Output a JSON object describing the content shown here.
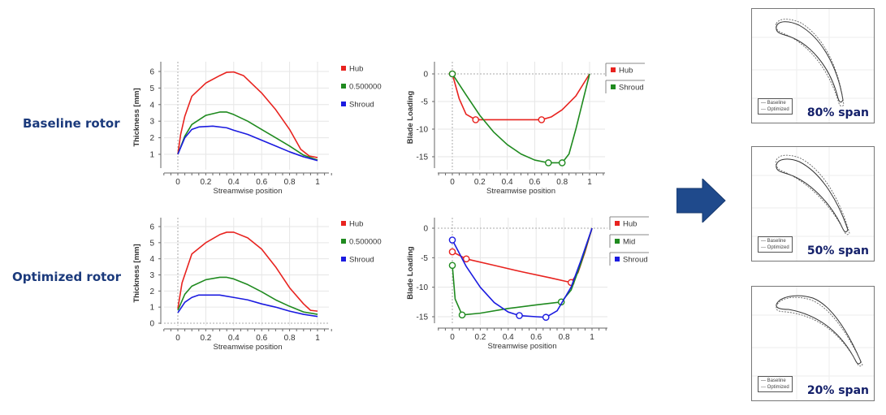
{
  "row_labels": {
    "baseline": "Baseline rotor",
    "optimized": "Optimized rotor"
  },
  "colors": {
    "hub": "#e8231f",
    "mid": "#1f8a1f",
    "shroud": "#1b1be0",
    "label": "#1b3a7c",
    "arrow": "#1f4a8c"
  },
  "blade_panels": [
    {
      "span_label": "80% span",
      "legend": [
        "Baseline",
        "Optimized"
      ]
    },
    {
      "span_label": "50% span",
      "legend": [
        "Baseline",
        "Optimized"
      ]
    },
    {
      "span_label": "20% span",
      "legend": [
        "Baseline",
        "Optimized"
      ]
    }
  ],
  "chart_data": [
    {
      "type": "line",
      "id": "baseline-thickness",
      "xlabel": "Streamwise position",
      "ylabel": "Thickness [mm]",
      "xlim": [
        -0.1,
        1.1
      ],
      "ylim": [
        -0.3,
        6.5
      ],
      "xticks": [
        0,
        0.2,
        0.4,
        0.6,
        0.8,
        1
      ],
      "yticks": [
        1,
        2,
        3,
        4,
        5,
        6
      ],
      "grid": true,
      "legend": "right",
      "series": [
        {
          "name": "Hub",
          "color": "#e8231f",
          "x": [
            0,
            0.02,
            0.05,
            0.1,
            0.2,
            0.3,
            0.35,
            0.4,
            0.47,
            0.55,
            0.6,
            0.7,
            0.8,
            0.88,
            0.94,
            1
          ],
          "y": [
            1,
            2.2,
            3.3,
            4.5,
            5.3,
            5.75,
            5.95,
            5.97,
            5.75,
            5.1,
            4.7,
            3.7,
            2.5,
            1.3,
            0.9,
            0.8
          ]
        },
        {
          "name": "0.500000",
          "color": "#1f8a1f",
          "x": [
            0,
            0.05,
            0.1,
            0.2,
            0.3,
            0.35,
            0.4,
            0.5,
            0.6,
            0.7,
            0.8,
            0.9,
            1
          ],
          "y": [
            1,
            2.1,
            2.8,
            3.35,
            3.55,
            3.55,
            3.4,
            3.0,
            2.5,
            2.0,
            1.5,
            0.95,
            0.65
          ]
        },
        {
          "name": "Shroud",
          "color": "#1b1be0",
          "x": [
            0,
            0.05,
            0.1,
            0.15,
            0.25,
            0.35,
            0.4,
            0.5,
            0.6,
            0.7,
            0.8,
            0.9,
            1
          ],
          "y": [
            1,
            2.0,
            2.5,
            2.65,
            2.7,
            2.6,
            2.45,
            2.2,
            1.85,
            1.5,
            1.15,
            0.85,
            0.62
          ]
        }
      ]
    },
    {
      "type": "line",
      "id": "baseline-loading",
      "xlabel": "Streamwise position",
      "ylabel": "Blade Loading",
      "xlim": [
        -0.1,
        1.1
      ],
      "ylim": [
        -17.5,
        2
      ],
      "xticks": [
        0,
        0.2,
        0.4,
        0.6,
        0.8,
        1
      ],
      "yticks": [
        0,
        -5,
        -10,
        -15
      ],
      "grid": true,
      "legend": "right",
      "series": [
        {
          "name": "Hub",
          "color": "#e8231f",
          "x": [
            0,
            0.05,
            0.1,
            0.17,
            0.3,
            0.5,
            0.65,
            0.72,
            0.8,
            0.9,
            1
          ],
          "y": [
            0,
            -4.5,
            -7.3,
            -8.3,
            -8.3,
            -8.3,
            -8.3,
            -7.8,
            -6.5,
            -4,
            0
          ],
          "markers": [
            [
              0,
              0
            ],
            [
              0.17,
              -8.3
            ],
            [
              0.65,
              -8.3
            ]
          ]
        },
        {
          "name": "Shroud",
          "color": "#1f8a1f",
          "x": [
            0,
            0.1,
            0.2,
            0.3,
            0.4,
            0.5,
            0.6,
            0.7,
            0.8,
            0.85,
            0.9,
            0.95,
            1
          ],
          "y": [
            0,
            -3.8,
            -7.5,
            -10.5,
            -12.8,
            -14.5,
            -15.6,
            -16.1,
            -16.1,
            -14.5,
            -10,
            -5,
            0
          ],
          "markers": [
            [
              0,
              0
            ],
            [
              0.7,
              -16.1
            ],
            [
              0.8,
              -16.1
            ]
          ]
        }
      ]
    },
    {
      "type": "line",
      "id": "optimized-thickness",
      "xlabel": "Streamwise position",
      "ylabel": "Thickness [mm]",
      "xlim": [
        -0.1,
        1.1
      ],
      "ylim": [
        -0.3,
        6.5
      ],
      "xticks": [
        0,
        0.2,
        0.4,
        0.6,
        0.8,
        1
      ],
      "yticks": [
        0,
        1,
        2,
        3,
        4,
        5,
        6
      ],
      "grid": true,
      "legend": "right",
      "series": [
        {
          "name": "Hub",
          "color": "#e8231f",
          "x": [
            0,
            0.03,
            0.1,
            0.2,
            0.3,
            0.35,
            0.4,
            0.5,
            0.6,
            0.7,
            0.8,
            0.9,
            0.95,
            1
          ],
          "y": [
            0.9,
            2.5,
            4.3,
            5.0,
            5.5,
            5.65,
            5.65,
            5.3,
            4.6,
            3.5,
            2.2,
            1.2,
            0.8,
            0.75
          ]
        },
        {
          "name": "0.500000",
          "color": "#1f8a1f",
          "x": [
            0,
            0.05,
            0.1,
            0.2,
            0.3,
            0.35,
            0.4,
            0.5,
            0.6,
            0.7,
            0.8,
            0.9,
            1
          ],
          "y": [
            0.8,
            1.8,
            2.3,
            2.7,
            2.85,
            2.85,
            2.75,
            2.4,
            1.95,
            1.45,
            1.05,
            0.7,
            0.55
          ]
        },
        {
          "name": "Shroud",
          "color": "#1b1be0",
          "x": [
            0,
            0.05,
            0.1,
            0.15,
            0.3,
            0.4,
            0.5,
            0.6,
            0.7,
            0.8,
            0.9,
            1
          ],
          "y": [
            0.65,
            1.3,
            1.6,
            1.75,
            1.75,
            1.6,
            1.45,
            1.2,
            1.0,
            0.75,
            0.55,
            0.42
          ]
        }
      ]
    },
    {
      "type": "line",
      "id": "optimized-loading",
      "xlabel": "Streamwise position",
      "ylabel": "Blade Loading",
      "xlim": [
        -0.1,
        1.1
      ],
      "ylim": [
        -16.5,
        2
      ],
      "xticks": [
        0,
        0.2,
        0.4,
        0.6,
        0.8,
        1
      ],
      "yticks": [
        0,
        -5,
        -10,
        -15
      ],
      "grid": true,
      "legend": "right",
      "series": [
        {
          "name": "Hub",
          "color": "#e8231f",
          "x": [
            0,
            0.1,
            0.3,
            0.5,
            0.7,
            0.85,
            0.9,
            0.95,
            1
          ],
          "y": [
            -4,
            -5.2,
            -6.3,
            -7.4,
            -8.4,
            -9.2,
            -7.5,
            -4,
            0
          ],
          "markers": [
            [
              0,
              -4
            ],
            [
              0.1,
              -5.2
            ],
            [
              0.85,
              -9.2
            ]
          ]
        },
        {
          "name": "Mid",
          "color": "#1f8a1f",
          "x": [
            0,
            0.02,
            0.07,
            0.2,
            0.4,
            0.6,
            0.78,
            0.85,
            0.92,
            1
          ],
          "y": [
            -6.3,
            -12,
            -14.7,
            -14.4,
            -13.6,
            -13,
            -12.5,
            -10.5,
            -6,
            0
          ],
          "markers": [
            [
              0,
              -6.3
            ],
            [
              0.07,
              -14.7
            ],
            [
              0.78,
              -12.5
            ]
          ]
        },
        {
          "name": "Shroud",
          "color": "#1b1be0",
          "x": [
            0,
            0.1,
            0.2,
            0.3,
            0.4,
            0.48,
            0.6,
            0.67,
            0.75,
            0.85,
            0.92,
            1
          ],
          "y": [
            -2,
            -6.5,
            -10,
            -12.6,
            -14.2,
            -14.8,
            -15,
            -15.1,
            -14,
            -10,
            -5.5,
            0
          ],
          "markers": [
            [
              0,
              -2
            ],
            [
              0.48,
              -14.8
            ],
            [
              0.67,
              -15.1
            ]
          ]
        }
      ]
    }
  ]
}
